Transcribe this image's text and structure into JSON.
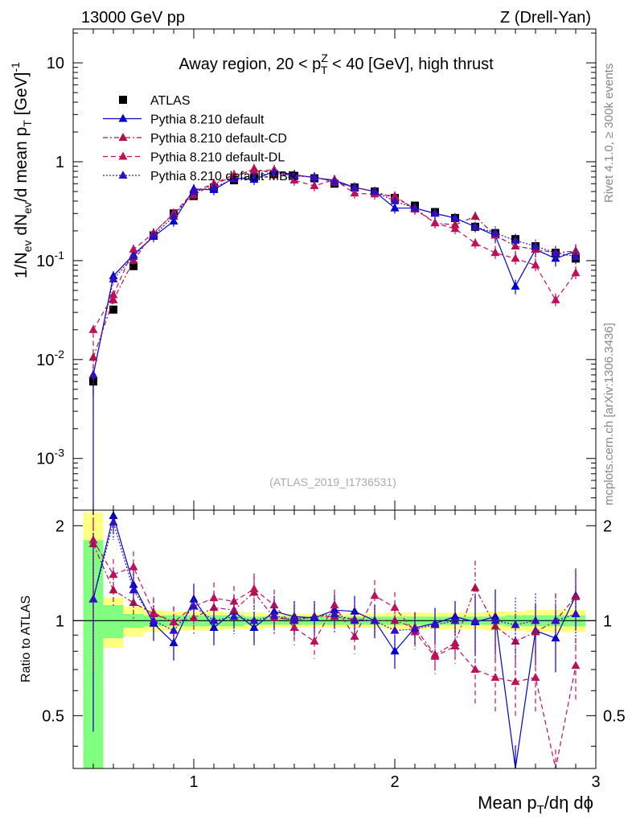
{
  "header": {
    "left": "13000 GeV pp",
    "right": "Z (Drell-Yan)"
  },
  "side": {
    "rivet": "Rivet 4.1.0, ≥ 300k events",
    "mcplots": "mcplots.cern.ch [arXiv:1306.3436]"
  },
  "chart_data": [
    {
      "type": "scatter",
      "panel": "main",
      "title": "Away region, 20 < p_T^Z < 40 [GeV], high thrust",
      "watermark": "(ATLAS_2019_I1736531)",
      "xlabel": "Mean p_T/dη dϕ",
      "ylabel": "1/N_ev dN_ev/d mean p_T [GeV]^-1",
      "xlim": [
        0.4,
        3.0
      ],
      "ylim": [
        0.0003,
        22
      ],
      "yscale": "log",
      "x_ticks": [
        "1",
        "2",
        "3"
      ],
      "y_ticks": [
        "10^-3",
        "10^-2",
        "10^-1",
        "1",
        "10"
      ],
      "x": [
        0.5,
        0.6,
        0.7,
        0.8,
        0.9,
        1.0,
        1.1,
        1.2,
        1.3,
        1.4,
        1.5,
        1.6,
        1.7,
        1.8,
        1.9,
        2.0,
        2.1,
        2.2,
        2.3,
        2.4,
        2.5,
        2.6,
        2.7,
        2.8,
        2.9
      ],
      "series": [
        {
          "name": "ATLAS",
          "marker": "square",
          "color": "#000000",
          "values": [
            0.006,
            0.032,
            0.088,
            0.18,
            0.3,
            0.45,
            0.55,
            0.65,
            0.7,
            0.75,
            0.72,
            0.68,
            0.6,
            0.55,
            0.5,
            0.43,
            0.36,
            0.31,
            0.27,
            0.22,
            0.19,
            0.165,
            0.14,
            0.12,
            0.105
          ]
        },
        {
          "name": "Pythia 8.210 default",
          "marker": "triangle",
          "color": "#0000cc",
          "line": "solid",
          "values": [
            0.007,
            0.07,
            0.115,
            0.175,
            0.25,
            0.53,
            0.52,
            0.69,
            0.66,
            0.8,
            0.74,
            0.69,
            0.65,
            0.55,
            0.5,
            0.34,
            0.34,
            0.3,
            0.27,
            0.22,
            0.18,
            0.055,
            0.13,
            0.105,
            0.125
          ]
        },
        {
          "name": "Pythia 8.210 default-CD",
          "marker": "triangle",
          "color": "#b0104a",
          "line": "dashdot",
          "values": [
            0.0105,
            0.04,
            0.1,
            0.19,
            0.3,
            0.46,
            0.6,
            0.7,
            0.85,
            0.76,
            0.73,
            0.7,
            0.62,
            0.55,
            0.5,
            0.43,
            0.34,
            0.24,
            0.23,
            0.28,
            0.18,
            0.14,
            0.13,
            0.12,
            0.125
          ]
        },
        {
          "name": "Pythia 8.210 default-DL",
          "marker": "triangle",
          "color": "#c0105c",
          "line": "dashed",
          "values": [
            0.02,
            0.045,
            0.13,
            0.19,
            0.3,
            0.5,
            0.6,
            0.74,
            0.8,
            0.83,
            0.65,
            0.57,
            0.66,
            0.48,
            0.47,
            0.45,
            0.33,
            0.24,
            0.21,
            0.15,
            0.12,
            0.105,
            0.09,
            0.04,
            0.075
          ]
        },
        {
          "name": "Pythia 8.210 default-MBR",
          "marker": "triangle",
          "color": "#3010c0",
          "line": "dotted",
          "values": [
            0.007,
            0.065,
            0.11,
            0.18,
            0.28,
            0.5,
            0.55,
            0.67,
            0.7,
            0.78,
            0.72,
            0.7,
            0.63,
            0.55,
            0.5,
            0.4,
            0.34,
            0.3,
            0.27,
            0.22,
            0.19,
            0.16,
            0.14,
            0.12,
            0.11
          ]
        }
      ],
      "legend": "top-left"
    },
    {
      "type": "scatter",
      "panel": "ratio",
      "ylabel": "Ratio to ATLAS",
      "xlim": [
        0.4,
        3.0
      ],
      "ylim": [
        0.34,
        2.24
      ],
      "y_ticks": [
        "0.5",
        "1",
        "2"
      ],
      "x_ticks": [
        "1",
        "2",
        "3"
      ],
      "band_green": [
        0.8,
        0.12,
        0.05,
        0.04,
        0.04,
        0.04,
        0.04,
        0.04,
        0.03,
        0.03,
        0.03,
        0.03,
        0.03,
        0.03,
        0.03,
        0.03,
        0.03,
        0.03,
        0.03,
        0.03,
        0.03,
        0.04,
        0.04,
        0.04,
        0.04
      ],
      "band_yellow": [
        1.2,
        0.18,
        0.11,
        0.08,
        0.07,
        0.07,
        0.07,
        0.06,
        0.06,
        0.05,
        0.05,
        0.05,
        0.05,
        0.05,
        0.05,
        0.06,
        0.06,
        0.06,
        0.06,
        0.06,
        0.07,
        0.07,
        0.08,
        0.08,
        0.08
      ],
      "x": [
        0.5,
        0.6,
        0.7,
        0.8,
        0.9,
        1.0,
        1.1,
        1.2,
        1.3,
        1.4,
        1.5,
        1.6,
        1.7,
        1.8,
        1.9,
        2.0,
        2.1,
        2.2,
        2.3,
        2.4,
        2.5,
        2.6,
        2.7,
        2.8,
        2.9
      ],
      "series": [
        {
          "name": "Pythia 8.210 default",
          "color": "#0000cc",
          "line": "solid",
          "values": [
            1.17,
            2.15,
            1.3,
            0.98,
            0.85,
            1.17,
            0.95,
            1.07,
            0.95,
            1.07,
            1.03,
            1.02,
            1.08,
            1.07,
            1.0,
            0.8,
            0.95,
            0.98,
            1.03,
            0.99,
            1.03,
            0.33,
            0.93,
            0.88,
            1.2
          ]
        },
        {
          "name": "Pythia 8.210 default-CD",
          "color": "#b0104a",
          "line": "dashdot",
          "values": [
            1.75,
            1.25,
            1.14,
            1.05,
            0.99,
            1.02,
            1.1,
            1.08,
            1.23,
            1.02,
            1.01,
            1.03,
            1.03,
            1.01,
            1.0,
            1.0,
            0.95,
            0.78,
            0.85,
            1.27,
            0.96,
            0.86,
            0.92,
            1.0,
            1.19
          ]
        },
        {
          "name": "Pythia 8.210 default-DL",
          "color": "#c0105c",
          "line": "dashed",
          "values": [
            1.8,
            1.4,
            1.48,
            1.06,
            0.99,
            1.11,
            1.18,
            1.15,
            1.26,
            1.12,
            0.95,
            0.86,
            1.12,
            0.89,
            1.2,
            1.1,
            0.92,
            0.77,
            0.83,
            0.7,
            0.66,
            0.64,
            0.66,
            0.32,
            0.72
          ]
        },
        {
          "name": "Pythia 8.210 default-MBR",
          "color": "#3010c0",
          "line": "dotted",
          "values": [
            1.17,
            2.05,
            1.25,
            1.0,
            0.93,
            1.11,
            1.0,
            1.03,
            1.0,
            1.04,
            1.0,
            1.03,
            1.05,
            1.0,
            1.0,
            0.93,
            0.94,
            0.97,
            1.0,
            1.0,
            1.0,
            0.97,
            1.0,
            1.0,
            1.05
          ]
        }
      ]
    }
  ]
}
